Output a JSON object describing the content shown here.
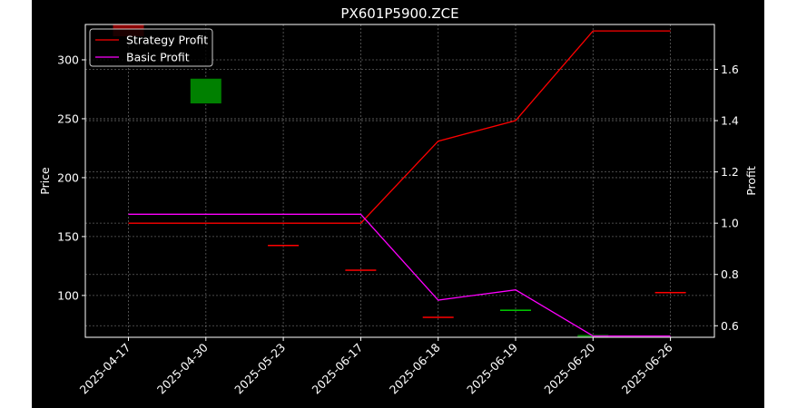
{
  "chart_data": {
    "type": "line",
    "title": "PX601P5900.ZCE",
    "categories": [
      "2025-04-17",
      "2025-04-30",
      "2025-05-23",
      "2025-06-17",
      "2025-06-18",
      "2025-06-19",
      "2025-06-20",
      "2025-06-26"
    ],
    "ylabel_left": "Price",
    "ylabel_right": "Profit",
    "ylim_left": [
      64.5,
      330
    ],
    "ylim_right": [
      0.555,
      1.775
    ],
    "yticks_left": [
      100,
      150,
      200,
      250,
      300
    ],
    "yticks_right": [
      0.6,
      0.8,
      1.0,
      1.2,
      1.4,
      1.6
    ],
    "grid": true,
    "legend_position": "top-left",
    "candles": [
      {
        "date": "2025-04-17",
        "open": 330,
        "close": 320,
        "color": "#8b0000"
      },
      {
        "date": "2025-04-30",
        "open": 263,
        "close": 284,
        "color": "#008000"
      },
      {
        "date": "2025-05-23",
        "open": 143,
        "close": 143,
        "color": "#ff0000"
      },
      {
        "date": "2025-06-17",
        "open": 122,
        "close": 122,
        "color": "#ff0000"
      },
      {
        "date": "2025-06-18",
        "open": 82,
        "close": 82,
        "color": "#ff0000"
      },
      {
        "date": "2025-06-19",
        "open": 88,
        "close": 88,
        "color": "#00cc00"
      },
      {
        "date": "2025-06-20",
        "open": 64.5,
        "close": 66.5,
        "color": "#008000"
      },
      {
        "date": "2025-06-26",
        "open": 103,
        "close": 103,
        "color": "#ff0000"
      }
    ],
    "series": [
      {
        "name": "Strategy Profit",
        "color": "#ff0000",
        "axis": "right",
        "values": [
          1.0,
          1.0,
          1.0,
          1.0,
          1.32,
          1.4,
          1.75,
          1.75
        ]
      },
      {
        "name": "Basic Profit",
        "color": "#ff00ff",
        "axis": "right",
        "values": [
          1.035,
          1.035,
          1.035,
          1.035,
          0.7,
          0.74,
          0.56,
          0.56
        ]
      }
    ]
  }
}
